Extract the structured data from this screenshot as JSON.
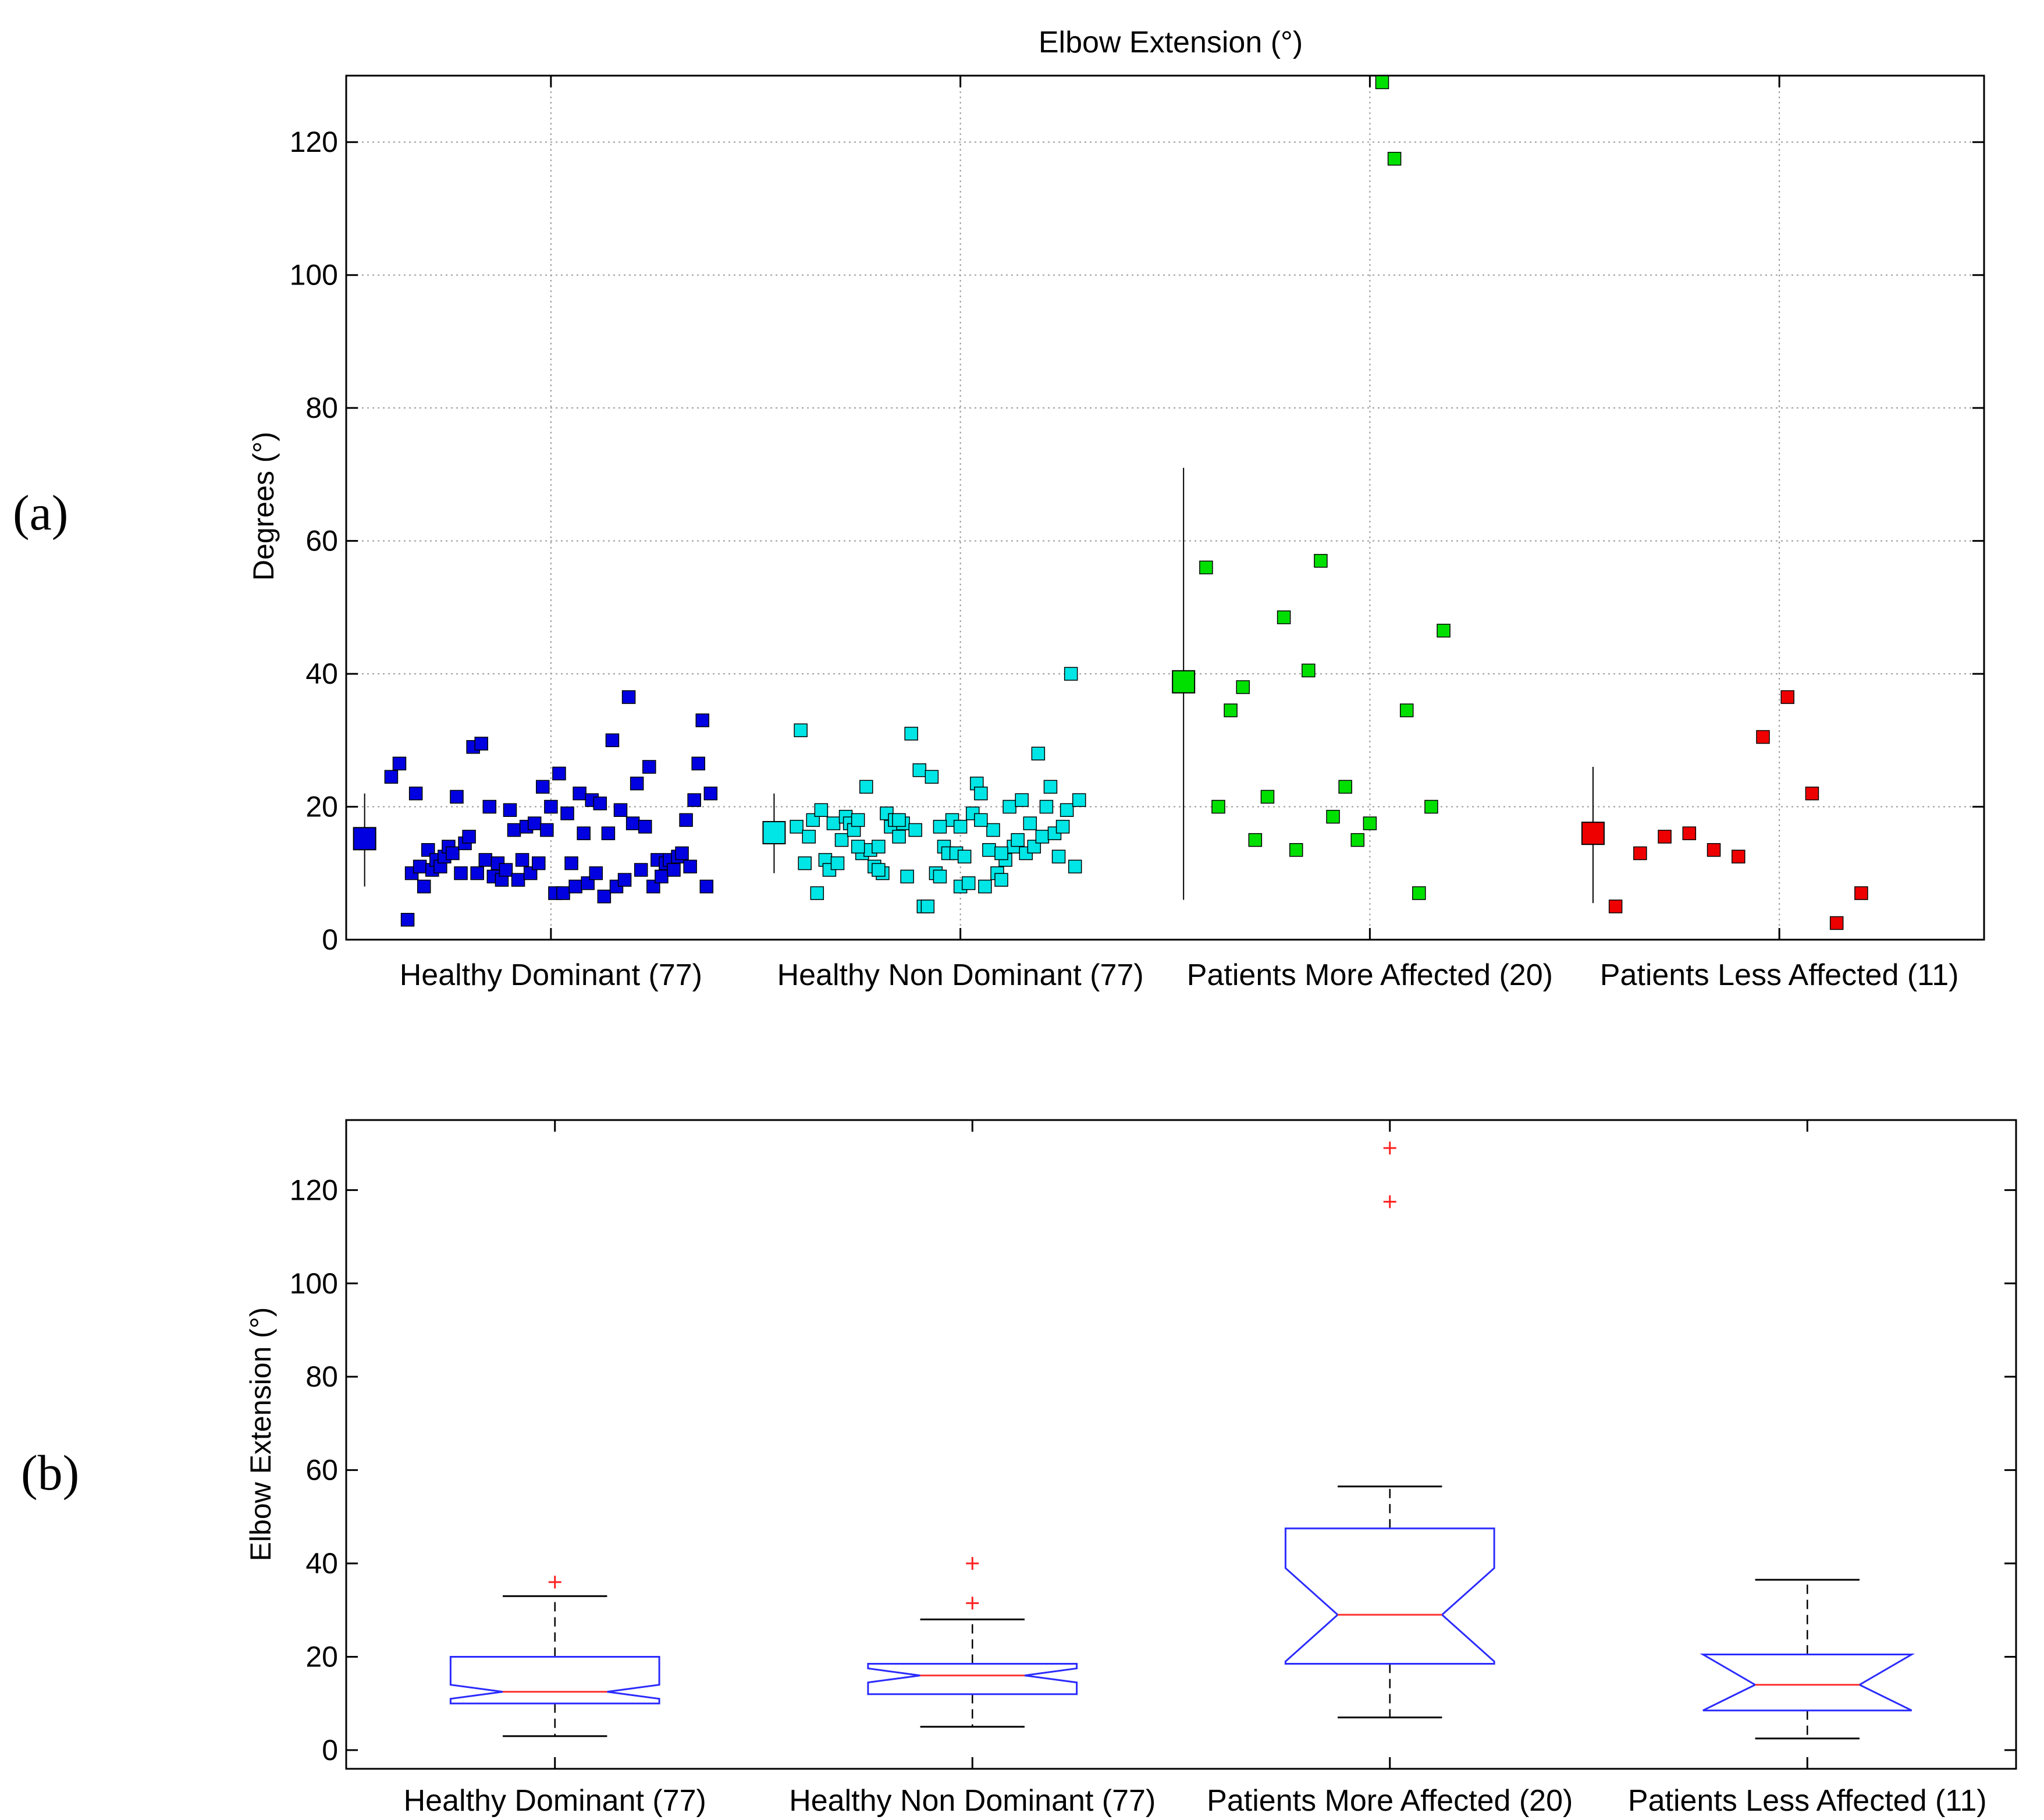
{
  "panel_labels": [
    "(a)",
    "(b)"
  ],
  "chart_data": [
    {
      "type": "scatter",
      "panel": "(a)",
      "title": "Elbow Extension (°)",
      "xlabel": "",
      "ylabel": "Degrees (°)",
      "ylim": [
        0,
        130
      ],
      "yticks": [
        0,
        20,
        40,
        60,
        80,
        100,
        120
      ],
      "grid": true,
      "categories": [
        "Healthy Dominant (77)",
        "Healthy Non Dominant (77)",
        "Patients More Affected (20)",
        "Patients Less Affected (11)"
      ],
      "colors": [
        "#0000e0",
        "#00e5e5",
        "#00e000",
        "#ee0000"
      ],
      "summary": [
        {
          "mean": 15.2,
          "low": 8,
          "high": 22
        },
        {
          "mean": 16.1,
          "low": 10,
          "high": 22
        },
        {
          "mean": 38.8,
          "low": 6,
          "high": 71
        },
        {
          "mean": 16.0,
          "low": 5.5,
          "high": 26
        }
      ],
      "series": [
        {
          "name": "Healthy Dominant (77)",
          "points": [
            [
              0.11,
              24.5
            ],
            [
              0.13,
              26.5
            ],
            [
              0.15,
              3
            ],
            [
              0.16,
              10
            ],
            [
              0.17,
              22
            ],
            [
              0.18,
              11
            ],
            [
              0.19,
              8
            ],
            [
              0.2,
              13.5
            ],
            [
              0.21,
              10.5
            ],
            [
              0.22,
              12
            ],
            [
              0.23,
              11
            ],
            [
              0.24,
              12.5
            ],
            [
              0.25,
              14
            ],
            [
              0.26,
              13
            ],
            [
              0.27,
              21.5
            ],
            [
              0.28,
              10
            ],
            [
              0.29,
              14.5
            ],
            [
              0.3,
              15.5
            ],
            [
              0.31,
              29
            ],
            [
              0.32,
              10
            ],
            [
              0.33,
              29.5
            ],
            [
              0.34,
              12
            ],
            [
              0.35,
              20
            ],
            [
              0.36,
              9.5
            ],
            [
              0.37,
              11.5
            ],
            [
              0.38,
              9
            ],
            [
              0.39,
              10.5
            ],
            [
              0.4,
              19.5
            ],
            [
              0.41,
              16.5
            ],
            [
              0.42,
              9
            ],
            [
              0.43,
              12
            ],
            [
              0.44,
              17
            ],
            [
              0.45,
              10
            ],
            [
              0.46,
              17.5
            ],
            [
              0.47,
              11.5
            ],
            [
              0.48,
              23
            ],
            [
              0.49,
              16.5
            ],
            [
              0.5,
              20
            ],
            [
              0.51,
              7
            ],
            [
              0.52,
              25
            ],
            [
              0.53,
              7
            ],
            [
              0.54,
              19
            ],
            [
              0.55,
              11.5
            ],
            [
              0.56,
              8
            ],
            [
              0.57,
              22
            ],
            [
              0.58,
              16
            ],
            [
              0.59,
              8.5
            ],
            [
              0.6,
              21
            ],
            [
              0.61,
              10
            ],
            [
              0.62,
              20.5
            ],
            [
              0.63,
              6.5
            ],
            [
              0.64,
              16
            ],
            [
              0.65,
              30
            ],
            [
              0.66,
              8
            ],
            [
              0.67,
              19.5
            ],
            [
              0.68,
              9
            ],
            [
              0.69,
              36.5
            ],
            [
              0.7,
              17.5
            ],
            [
              0.71,
              23.5
            ],
            [
              0.72,
              10.5
            ],
            [
              0.73,
              17
            ],
            [
              0.74,
              26
            ],
            [
              0.75,
              8
            ],
            [
              0.76,
              12
            ],
            [
              0.77,
              9.5
            ],
            [
              0.78,
              11.5
            ],
            [
              0.79,
              12
            ],
            [
              0.8,
              10.5
            ],
            [
              0.81,
              12.5
            ],
            [
              0.82,
              13
            ],
            [
              0.83,
              18
            ],
            [
              0.84,
              11
            ],
            [
              0.85,
              21
            ],
            [
              0.86,
              26.5
            ],
            [
              0.87,
              33
            ],
            [
              0.88,
              8
            ],
            [
              0.89,
              22
            ]
          ]
        },
        {
          "name": "Healthy Non Dominant (77)",
          "points": [
            [
              0.1,
              17
            ],
            [
              0.11,
              31.5
            ],
            [
              0.12,
              11.5
            ],
            [
              0.13,
              15.5
            ],
            [
              0.14,
              18
            ],
            [
              0.15,
              7
            ],
            [
              0.16,
              19.5
            ],
            [
              0.17,
              12
            ],
            [
              0.18,
              10.5
            ],
            [
              0.19,
              17.5
            ],
            [
              0.2,
              11.5
            ],
            [
              0.21,
              15
            ],
            [
              0.22,
              18.5
            ],
            [
              0.23,
              17.5
            ],
            [
              0.24,
              16.5
            ],
            [
              0.25,
              18
            ],
            [
              0.26,
              13
            ],
            [
              0.27,
              23
            ],
            [
              0.28,
              13.5
            ],
            [
              0.29,
              11
            ],
            [
              0.3,
              14
            ],
            [
              0.31,
              10
            ],
            [
              0.32,
              19
            ],
            [
              0.33,
              17
            ],
            [
              0.34,
              18
            ],
            [
              0.35,
              15.5
            ],
            [
              0.36,
              17.5
            ],
            [
              0.37,
              9.5
            ],
            [
              0.38,
              31
            ],
            [
              0.39,
              16.5
            ],
            [
              0.4,
              25.5
            ],
            [
              0.41,
              5
            ],
            [
              0.42,
              5
            ],
            [
              0.43,
              24.5
            ],
            [
              0.44,
              10
            ],
            [
              0.45,
              9.5
            ],
            [
              0.46,
              14
            ],
            [
              0.47,
              13
            ],
            [
              0.48,
              18
            ],
            [
              0.49,
              13
            ],
            [
              0.5,
              8
            ],
            [
              0.51,
              12.5
            ],
            [
              0.52,
              8.5
            ],
            [
              0.53,
              19
            ],
            [
              0.54,
              23.5
            ],
            [
              0.55,
              22
            ],
            [
              0.56,
              8
            ],
            [
              0.57,
              13.5
            ],
            [
              0.58,
              16.5
            ],
            [
              0.59,
              10
            ],
            [
              0.6,
              9
            ],
            [
              0.61,
              12
            ],
            [
              0.62,
              20
            ],
            [
              0.63,
              14
            ],
            [
              0.64,
              15
            ],
            [
              0.65,
              21
            ],
            [
              0.66,
              13
            ],
            [
              0.67,
              17.5
            ],
            [
              0.68,
              14
            ],
            [
              0.69,
              28
            ],
            [
              0.7,
              15.5
            ],
            [
              0.71,
              20
            ],
            [
              0.72,
              23
            ],
            [
              0.73,
              16
            ],
            [
              0.74,
              12.5
            ],
            [
              0.75,
              17
            ],
            [
              0.76,
              19.5
            ],
            [
              0.77,
              40
            ],
            [
              0.78,
              11
            ],
            [
              0.79,
              21
            ],
            [
              0.3,
              10.5
            ],
            [
              0.35,
              18
            ],
            [
              0.45,
              17
            ],
            [
              0.55,
              18
            ],
            [
              0.6,
              13
            ],
            [
              0.25,
              14
            ],
            [
              0.5,
              17
            ]
          ]
        },
        {
          "name": "Patients More Affected (20)",
          "points": [
            [
              0.1,
              56
            ],
            [
              0.13,
              20
            ],
            [
              0.16,
              34.5
            ],
            [
              0.19,
              38
            ],
            [
              0.22,
              15
            ],
            [
              0.25,
              21.5
            ],
            [
              0.29,
              48.5
            ],
            [
              0.32,
              13.5
            ],
            [
              0.35,
              40.5
            ],
            [
              0.38,
              57
            ],
            [
              0.41,
              18.5
            ],
            [
              0.44,
              23
            ],
            [
              0.47,
              15
            ],
            [
              0.5,
              17.5
            ],
            [
              0.53,
              129
            ],
            [
              0.56,
              117.5
            ],
            [
              0.59,
              34.5
            ],
            [
              0.62,
              7
            ],
            [
              0.65,
              20
            ],
            [
              0.68,
              46.5
            ]
          ]
        },
        {
          "name": "Patients Less Affected (11)",
          "points": [
            [
              0.1,
              5
            ],
            [
              0.16,
              13
            ],
            [
              0.22,
              15.5
            ],
            [
              0.28,
              16
            ],
            [
              0.34,
              13.5
            ],
            [
              0.4,
              12.5
            ],
            [
              0.46,
              30.5
            ],
            [
              0.52,
              36.5
            ],
            [
              0.58,
              22
            ],
            [
              0.64,
              2.5
            ],
            [
              0.7,
              7
            ]
          ]
        }
      ]
    },
    {
      "type": "box",
      "panel": "(b)",
      "title": "",
      "xlabel": "",
      "ylabel": "Elbow Extension (°)",
      "ylim": [
        -4,
        135
      ],
      "yticks": [
        0,
        20,
        40,
        60,
        80,
        100,
        120
      ],
      "categories": [
        "Healthy Dominant (77)",
        "Healthy Non Dominant (77)",
        "Patients More Affected (20)",
        "Patients Less Affected (11)"
      ],
      "boxes": [
        {
          "whisker_low": 3,
          "q1": 10,
          "notch_low": 11,
          "median": 12.5,
          "notch_high": 14,
          "q3": 20,
          "whisker_high": 33,
          "outliers": [
            36
          ]
        },
        {
          "whisker_low": 5,
          "q1": 12,
          "notch_low": 14.5,
          "median": 16,
          "notch_high": 17.5,
          "q3": 18.5,
          "whisker_high": 28,
          "outliers": [
            31.5,
            40
          ]
        },
        {
          "whisker_low": 7,
          "q1": 18.5,
          "notch_low": 19,
          "median": 29,
          "notch_high": 39,
          "q3": 47.5,
          "whisker_high": 56.5,
          "outliers": [
            117.5,
            129
          ]
        },
        {
          "whisker_low": 2.5,
          "q1": 8.5,
          "notch_low": 8.5,
          "median": 14,
          "notch_high": 20.5,
          "q3": 20.5,
          "whisker_high": 36.5,
          "outliers": []
        }
      ]
    }
  ]
}
